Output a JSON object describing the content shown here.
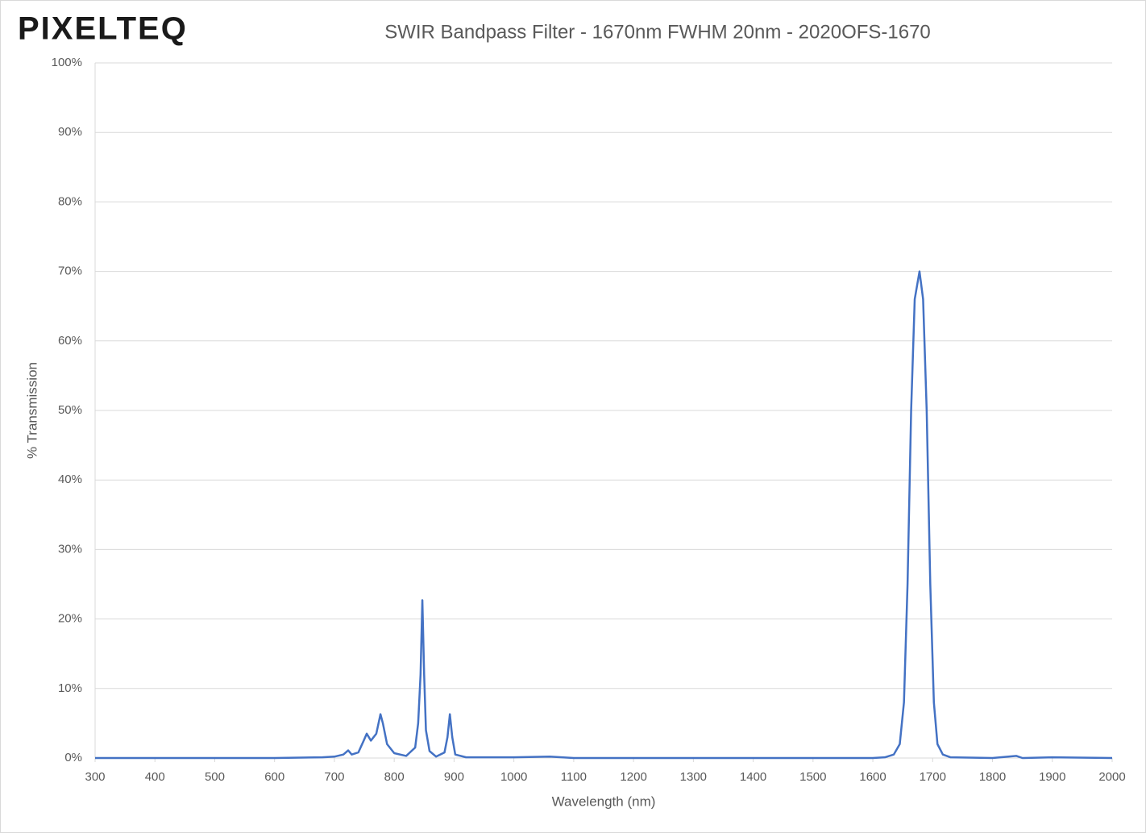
{
  "chart_data": {
    "type": "line",
    "logo": "PIXELTEQ",
    "title": "SWIR Bandpass Filter - 1670nm FWHM 20nm - 2020OFS-1670",
    "x_label": "Wavelength (nm)",
    "y_label": "% Transmission",
    "color": "#4472c4",
    "grid": true,
    "xlim": [
      300,
      2000
    ],
    "xticks": [
      300,
      400,
      500,
      600,
      700,
      800,
      900,
      1000,
      1100,
      1200,
      1300,
      1400,
      1500,
      1600,
      1700,
      1800,
      1900,
      2000
    ],
    "ylim": [
      0,
      100
    ],
    "yticks": [
      {
        "value": 0,
        "label": "0%"
      },
      {
        "value": 10,
        "label": "10%"
      },
      {
        "value": 20,
        "label": "20%"
      },
      {
        "value": 30,
        "label": "30%"
      },
      {
        "value": 40,
        "label": "40%"
      },
      {
        "value": 50,
        "label": "50%"
      },
      {
        "value": 60,
        "label": "60%"
      },
      {
        "value": 70,
        "label": "70%"
      },
      {
        "value": 80,
        "label": "80%"
      },
      {
        "value": 90,
        "label": "90%"
      },
      {
        "value": 100,
        "label": "100%"
      }
    ],
    "x": [
      300,
      600,
      680,
      700,
      715,
      723,
      729,
      740,
      749,
      754,
      761,
      770,
      775,
      777,
      781,
      788,
      800,
      820,
      835,
      840,
      844,
      847,
      850,
      853,
      859,
      870,
      884,
      889,
      893,
      897,
      902,
      920,
      950,
      1000,
      1060,
      1100,
      1600,
      1620,
      1635,
      1645,
      1652,
      1658,
      1664,
      1670,
      1678,
      1684,
      1690,
      1696,
      1702,
      1708,
      1717,
      1730,
      1800,
      1840,
      1850,
      1900,
      2000
    ],
    "values": [
      0,
      0,
      0.1,
      0.2,
      0.5,
      1.1,
      0.5,
      0.8,
      2.5,
      3.5,
      2.5,
      3.5,
      5.5,
      6.3,
      5,
      2,
      0.7,
      0.3,
      1.5,
      5,
      12,
      22.7,
      12,
      4,
      1,
      0.2,
      0.8,
      3,
      6.3,
      3,
      0.5,
      0.1,
      0.1,
      0.1,
      0.2,
      0,
      0,
      0.1,
      0.5,
      2,
      8,
      25,
      50,
      66,
      70,
      66,
      50,
      25,
      8,
      2,
      0.5,
      0.1,
      0,
      0.3,
      0,
      0.1,
      0
    ]
  }
}
